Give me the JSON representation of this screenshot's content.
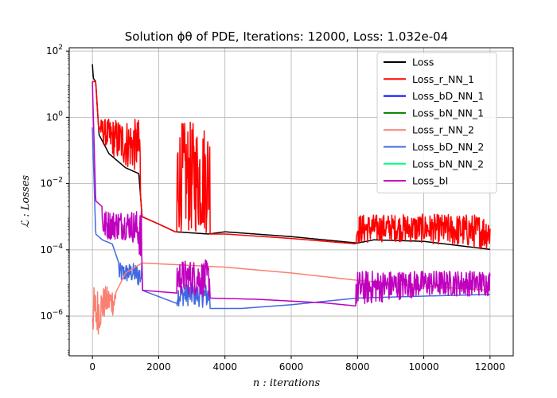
{
  "chart_data": {
    "type": "line",
    "title": "Solution ϕθ of PDE, Iterations: 12000, Loss: 1.032e-04",
    "xlabel": "n : iterations",
    "ylabel": "ℒ : Losses",
    "yscale": "log",
    "xlim": [
      -700,
      12700
    ],
    "ylim_exp": [
      -7.2,
      2.1
    ],
    "x_ticks": [
      "0",
      "2000",
      "4000",
      "6000",
      "8000",
      "10000",
      "12000"
    ],
    "x_tick_values": [
      0,
      2000,
      4000,
      6000,
      8000,
      10000,
      12000
    ],
    "y_ticks": [
      {
        "base": "10",
        "exp": "2",
        "value_exp": 2
      },
      {
        "base": "10",
        "exp": "0",
        "value_exp": 0
      },
      {
        "base": "10",
        "exp": "−2",
        "value_exp": -2
      },
      {
        "base": "10",
        "exp": "−4",
        "value_exp": -4
      },
      {
        "base": "10",
        "exp": "−6",
        "value_exp": -6
      }
    ],
    "grid": true,
    "legend_placement": "top-right",
    "series": [
      {
        "name": "Loss",
        "color": "#000000",
        "points": [
          [
            0,
            40
          ],
          [
            30,
            15
          ],
          [
            100,
            12
          ],
          [
            200,
            0.3
          ],
          [
            500,
            0.08
          ],
          [
            1000,
            0.03
          ],
          [
            1400,
            0.02
          ],
          [
            1500,
            0.001
          ],
          [
            2000,
            0.0006
          ],
          [
            2500,
            0.00035
          ],
          [
            3500,
            0.0003
          ],
          [
            4000,
            0.00035
          ],
          [
            6000,
            0.00025
          ],
          [
            8000,
            0.00016
          ],
          [
            8500,
            0.0002
          ],
          [
            10000,
            0.00018
          ],
          [
            12000,
            0.000103
          ]
        ]
      },
      {
        "name": "Loss_r_NN_1",
        "color": "#ff0000",
        "points": [
          [
            0,
            12
          ],
          [
            100,
            12
          ],
          [
            200,
            0.3
          ],
          [
            500,
            0.08
          ],
          [
            1000,
            0.03
          ],
          [
            1400,
            0.02
          ],
          [
            1500,
            0.001
          ],
          [
            2000,
            0.0006
          ],
          [
            2500,
            0.00035
          ],
          [
            3000,
            0.0003
          ],
          [
            3500,
            0.0003
          ],
          [
            4000,
            0.0003
          ],
          [
            6000,
            0.00022
          ],
          [
            8000,
            0.00015
          ],
          [
            9000,
            0.00018
          ],
          [
            10000,
            0.00016
          ],
          [
            12000,
            0.0001
          ]
        ],
        "noise": [
          [
            200,
            1450,
            0.3,
            3
          ],
          [
            2550,
            3550,
            0.03,
            25
          ],
          [
            7950,
            12000,
            0.0002,
            6
          ]
        ]
      },
      {
        "name": "Loss_bD_NN_1",
        "color": "#0000ff",
        "points": []
      },
      {
        "name": "Loss_bN_NN_1",
        "color": "#008000",
        "points": []
      },
      {
        "name": "Loss_r_NN_2",
        "color": "#fa8072",
        "points": [
          [
            0,
            3e-07
          ],
          [
            100,
            2e-07
          ],
          [
            200,
            3e-07
          ],
          [
            400,
            1e-06
          ],
          [
            700,
            5e-06
          ],
          [
            1000,
            2e-05
          ],
          [
            1500,
            4e-05
          ],
          [
            4000,
            3e-05
          ],
          [
            6000,
            2e-05
          ],
          [
            8000,
            1.2e-05
          ],
          [
            10000,
            8e-06
          ],
          [
            12000,
            6e-06
          ]
        ],
        "noise": [
          [
            0,
            700,
            1e-06,
            8
          ]
        ]
      },
      {
        "name": "Loss_bD_NN_2",
        "color": "#4169e1",
        "points": [
          [
            0,
            0.5
          ],
          [
            100,
            0.0003
          ],
          [
            300,
            0.0002
          ],
          [
            600,
            0.00015
          ],
          [
            900,
            2e-05
          ],
          [
            1500,
            6e-06
          ],
          [
            2500,
            2.5e-06
          ],
          [
            3500,
            1.7e-06
          ],
          [
            4500,
            1.7e-06
          ],
          [
            6000,
            2.2e-06
          ],
          [
            8000,
            3.5e-06
          ],
          [
            10000,
            4e-06
          ],
          [
            12000,
            4.5e-06
          ]
        ],
        "noise": [
          [
            2550,
            3550,
            2e-06,
            5
          ],
          [
            800,
            1500,
            1e-05,
            4
          ]
        ]
      },
      {
        "name": "Loss_bN_NN_2",
        "color": "#00ff7f",
        "points": []
      },
      {
        "name": "Loss_bI",
        "color": "#bf00bf",
        "points": [
          [
            0,
            12
          ],
          [
            100,
            0.003
          ],
          [
            300,
            0.002
          ],
          [
            600,
            0.0008
          ],
          [
            1000,
            0.0003
          ],
          [
            1400,
            0.0001
          ],
          [
            1500,
            6e-06
          ],
          [
            2500,
            5e-06
          ],
          [
            3500,
            3.5e-06
          ],
          [
            5000,
            3.2e-06
          ],
          [
            7000,
            2.5e-06
          ],
          [
            8000,
            2e-06
          ],
          [
            10000,
            4e-06
          ],
          [
            12000,
            4e-06
          ]
        ],
        "noise": [
          [
            300,
            1500,
            0.0002,
            8
          ],
          [
            2550,
            3550,
            5e-06,
            10
          ],
          [
            7950,
            12000,
            4e-06,
            6
          ]
        ]
      }
    ]
  }
}
